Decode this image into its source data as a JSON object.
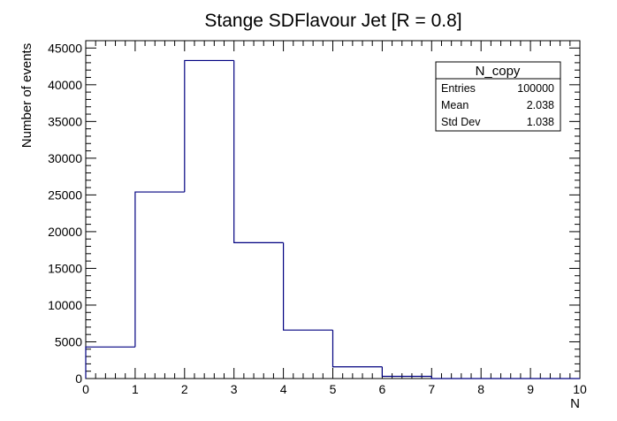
{
  "chart_data": {
    "type": "bar",
    "title": "Stange SDFlavour Jet [R = 0.8]",
    "xlabel": "N",
    "ylabel": "Number of events",
    "xlim": [
      0,
      10
    ],
    "ylim": [
      0,
      46000
    ],
    "x_ticks": [
      "0",
      "1",
      "2",
      "3",
      "4",
      "5",
      "6",
      "7",
      "8",
      "9",
      "10"
    ],
    "y_ticks": [
      "0",
      "5000",
      "10000",
      "15000",
      "20000",
      "25000",
      "30000",
      "35000",
      "40000",
      "45000"
    ],
    "bin_edges": [
      0,
      1,
      2,
      3,
      4,
      5,
      6,
      7,
      8,
      9,
      10
    ],
    "values": [
      4300,
      25400,
      43300,
      18500,
      6600,
      1600,
      300,
      0,
      0,
      0
    ],
    "line_color": "#000080",
    "stats": {
      "name": "N_copy",
      "rows": [
        {
          "label": "Entries",
          "value": "100000"
        },
        {
          "label": "Mean",
          "value": "2.038"
        },
        {
          "label": "Std Dev",
          "value": "1.038"
        }
      ]
    }
  }
}
